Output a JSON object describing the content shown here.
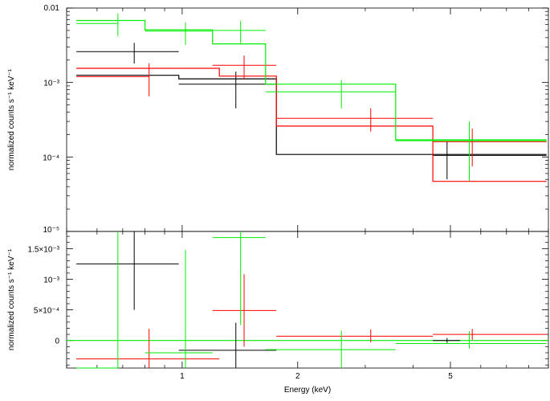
{
  "chart_data": [
    {
      "type": "line",
      "panel": "top",
      "xscale": "log",
      "yscale": "log",
      "xlim": [
        0.5,
        9.0
      ],
      "ylim": [
        1e-05,
        0.01
      ],
      "ylabel": "normalized counts s⁻¹ keV⁻¹",
      "xlabel": "",
      "y_ticks": [
        {
          "value": 0.01,
          "label": "0.01"
        },
        {
          "value": 0.001,
          "label": "10⁻³"
        },
        {
          "value": 0.0001,
          "label": "10⁻⁴"
        },
        {
          "value": 1e-05,
          "label": "10⁻⁵"
        }
      ],
      "x_ticks": [
        {
          "value": 1,
          "label": ""
        },
        {
          "value": 2,
          "label": ""
        },
        {
          "value": 5,
          "label": ""
        }
      ],
      "series": [
        {
          "color": "#000000",
          "data_points": [
            {
              "x_lo": 0.53,
              "x_hi": 0.98,
              "x": 0.75,
              "y": 0.0026,
              "y_lo": 0.0018,
              "y_hi": 0.0034
            },
            {
              "x_lo": 0.98,
              "x_hi": 1.76,
              "x": 1.38,
              "y": 0.00095,
              "y_lo": 0.00045,
              "y_hi": 0.0014
            },
            {
              "x_lo": 4.5,
              "x_hi": 8.9,
              "x": 4.9,
              "y": 0.000105,
              "y_lo": 5e-05,
              "y_hi": 0.00016
            }
          ],
          "model_steps": [
            {
              "x_lo": 0.53,
              "x_hi": 0.98,
              "y": 0.00125
            },
            {
              "x_lo": 0.98,
              "x_hi": 1.76,
              "y": 0.00112
            },
            {
              "x_lo": 1.76,
              "x_hi": 8.9,
              "y": 0.000108
            }
          ]
        },
        {
          "color": "#ff0000",
          "data_points": [
            {
              "x_lo": 0.53,
              "x_hi": 0.82,
              "x": 0.82,
              "y": 0.0012,
              "y_lo": 0.00065,
              "y_hi": 0.0018
            },
            {
              "x_lo": 1.2,
              "x_hi": 1.76,
              "x": 1.45,
              "y": 0.0017,
              "y_lo": 0.0011,
              "y_hi": 0.0023
            },
            {
              "x_lo": 1.76,
              "x_hi": 4.5,
              "x": 3.1,
              "y": 0.00033,
              "y_lo": 0.00022,
              "y_hi": 0.00045
            },
            {
              "x_lo": 4.5,
              "x_hi": 8.9,
              "x": 5.7,
              "y": 0.00016,
              "y_lo": 7.5e-05,
              "y_hi": 0.00024
            }
          ],
          "model_steps": [
            {
              "x_lo": 0.53,
              "x_hi": 1.25,
              "y": 0.00155
            },
            {
              "x_lo": 1.25,
              "x_hi": 1.76,
              "y": 0.00122
            },
            {
              "x_lo": 1.76,
              "x_hi": 4.5,
              "y": 0.00026
            },
            {
              "x_lo": 4.5,
              "x_hi": 8.9,
              "y": 4.7e-05
            }
          ]
        },
        {
          "color": "#00ee00",
          "data_points": [
            {
              "x_lo": 0.53,
              "x_hi": 0.68,
              "x": 0.68,
              "y": 0.0062,
              "y_lo": 0.0042,
              "y_hi": 0.0084
            },
            {
              "x_lo": 0.8,
              "x_hi": 1.2,
              "x": 1.02,
              "y": 0.0049,
              "y_lo": 0.0032,
              "y_hi": 0.0064
            },
            {
              "x_lo": 1.2,
              "x_hi": 1.65,
              "x": 1.42,
              "y": 0.005,
              "y_lo": 0.0033,
              "y_hi": 0.0067
            },
            {
              "x_lo": 1.65,
              "x_hi": 3.6,
              "x": 2.6,
              "y": 0.00075,
              "y_lo": 0.00045,
              "y_hi": 0.00108
            },
            {
              "x_lo": 3.6,
              "x_hi": 8.9,
              "x": 5.6,
              "y": 0.000165,
              "y_lo": 4.8e-05,
              "y_hi": 0.0003
            }
          ],
          "model_steps": [
            {
              "x_lo": 0.53,
              "x_hi": 0.8,
              "y": 0.0068
            },
            {
              "x_lo": 0.8,
              "x_hi": 1.2,
              "y": 0.0051
            },
            {
              "x_lo": 1.2,
              "x_hi": 1.65,
              "y": 0.0033
            },
            {
              "x_lo": 1.65,
              "x_hi": 3.6,
              "y": 0.00095
            },
            {
              "x_lo": 3.6,
              "x_hi": 8.9,
              "y": 0.00017
            }
          ]
        }
      ]
    },
    {
      "type": "scatter",
      "panel": "bottom",
      "xscale": "log",
      "yscale": "linear",
      "xlim": [
        0.5,
        9.0
      ],
      "ylim": [
        -0.00045,
        0.00178
      ],
      "ylabel": "normalized counts s⁻¹ keV⁻¹",
      "xlabel": "Energy (keV)",
      "y_ticks": [
        {
          "value": 0,
          "label": "0"
        },
        {
          "value": 0.0005,
          "label": "5×10⁻⁴"
        },
        {
          "value": 0.001,
          "label": "10⁻³"
        },
        {
          "value": 0.0015,
          "label": "1.5×10⁻³"
        }
      ],
      "x_ticks": [
        {
          "value": 1,
          "label": "1"
        },
        {
          "value": 2,
          "label": "2"
        },
        {
          "value": 5,
          "label": "5"
        }
      ],
      "zero_line_color": "#00ee00",
      "series": [
        {
          "color": "#000000",
          "data_points": [
            {
              "x_lo": 0.53,
              "x_hi": 0.98,
              "x": 0.75,
              "y": 0.00125,
              "y_lo": 0.0005,
              "y_hi": 0.00178
            },
            {
              "x_lo": 0.98,
              "x_hi": 1.76,
              "x": 1.38,
              "y": -0.00016,
              "y_lo": -0.00045,
              "y_hi": 0.00029
            },
            {
              "x_lo": 4.5,
              "x_hi": 5.3,
              "x": 4.9,
              "y": 0.0,
              "y_lo": -4e-05,
              "y_hi": 4e-05
            }
          ]
        },
        {
          "color": "#ff0000",
          "data_points": [
            {
              "x_lo": 0.53,
              "x_hi": 1.25,
              "x": 0.82,
              "y": -0.0003,
              "y_lo": -0.00045,
              "y_hi": 0.00019
            },
            {
              "x_lo": 1.2,
              "x_hi": 1.76,
              "x": 1.45,
              "y": 0.00049,
              "y_lo": -0.0001,
              "y_hi": 0.00108
            },
            {
              "x_lo": 1.76,
              "x_hi": 4.5,
              "x": 3.1,
              "y": 7e-05,
              "y_lo": -3e-05,
              "y_hi": 0.00018
            },
            {
              "x_lo": 4.5,
              "x_hi": 8.9,
              "x": 5.7,
              "y": 0.0001,
              "y_lo": 1e-05,
              "y_hi": 0.00019
            }
          ]
        },
        {
          "color": "#00ee00",
          "data_points": [
            {
              "x_lo": 0.53,
              "x_hi": 0.68,
              "x": 0.68,
              "y": -0.00055,
              "y_lo": -0.00045,
              "y_hi": 0.00178
            },
            {
              "x_lo": 0.8,
              "x_hi": 1.2,
              "x": 1.02,
              "y": -0.0002,
              "y_lo": -0.00045,
              "y_hi": 0.00148
            },
            {
              "x_lo": 1.2,
              "x_hi": 1.65,
              "x": 1.42,
              "y": 0.00168,
              "y_lo": 0.00025,
              "y_hi": 0.00178
            },
            {
              "x_lo": 1.65,
              "x_hi": 3.6,
              "x": 2.6,
              "y": -0.00015,
              "y_lo": -0.00045,
              "y_hi": 0.00016
            },
            {
              "x_lo": 3.6,
              "x_hi": 8.9,
              "x": 5.6,
              "y": -5e-05,
              "y_lo": -0.00013,
              "y_hi": 0.00015
            }
          ]
        }
      ]
    }
  ]
}
